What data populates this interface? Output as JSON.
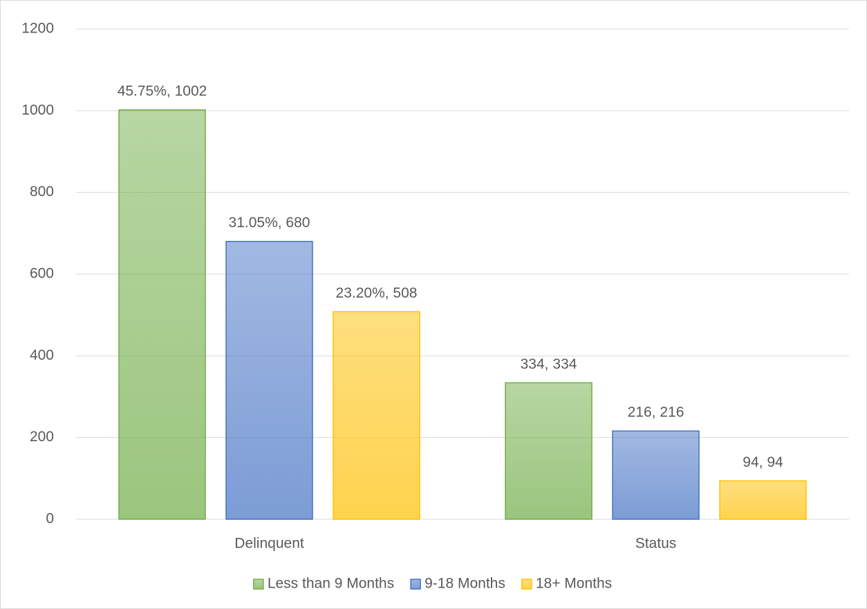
{
  "chart_data": {
    "type": "bar",
    "categories": [
      "Delinquent",
      "Status"
    ],
    "series": [
      {
        "name": "Less than 9 Months",
        "color": "#70ad47",
        "values": [
          1002,
          334
        ],
        "value_labels": [
          "45.75%, 1002",
          "334, 334"
        ]
      },
      {
        "name": "9-18 Months",
        "color": "#4472c4",
        "values": [
          680,
          216
        ],
        "value_labels": [
          "31.05%, 680",
          "216, 216"
        ]
      },
      {
        "name": "18+ Months",
        "color": "#ffc000",
        "values": [
          508,
          94
        ],
        "value_labels": [
          "23.20%, 508",
          "94, 94"
        ]
      }
    ],
    "ylim": [
      0,
      1200
    ],
    "yticks": [
      0,
      200,
      400,
      600,
      800,
      1000,
      1200
    ],
    "grid": true,
    "legend": "bottom"
  }
}
